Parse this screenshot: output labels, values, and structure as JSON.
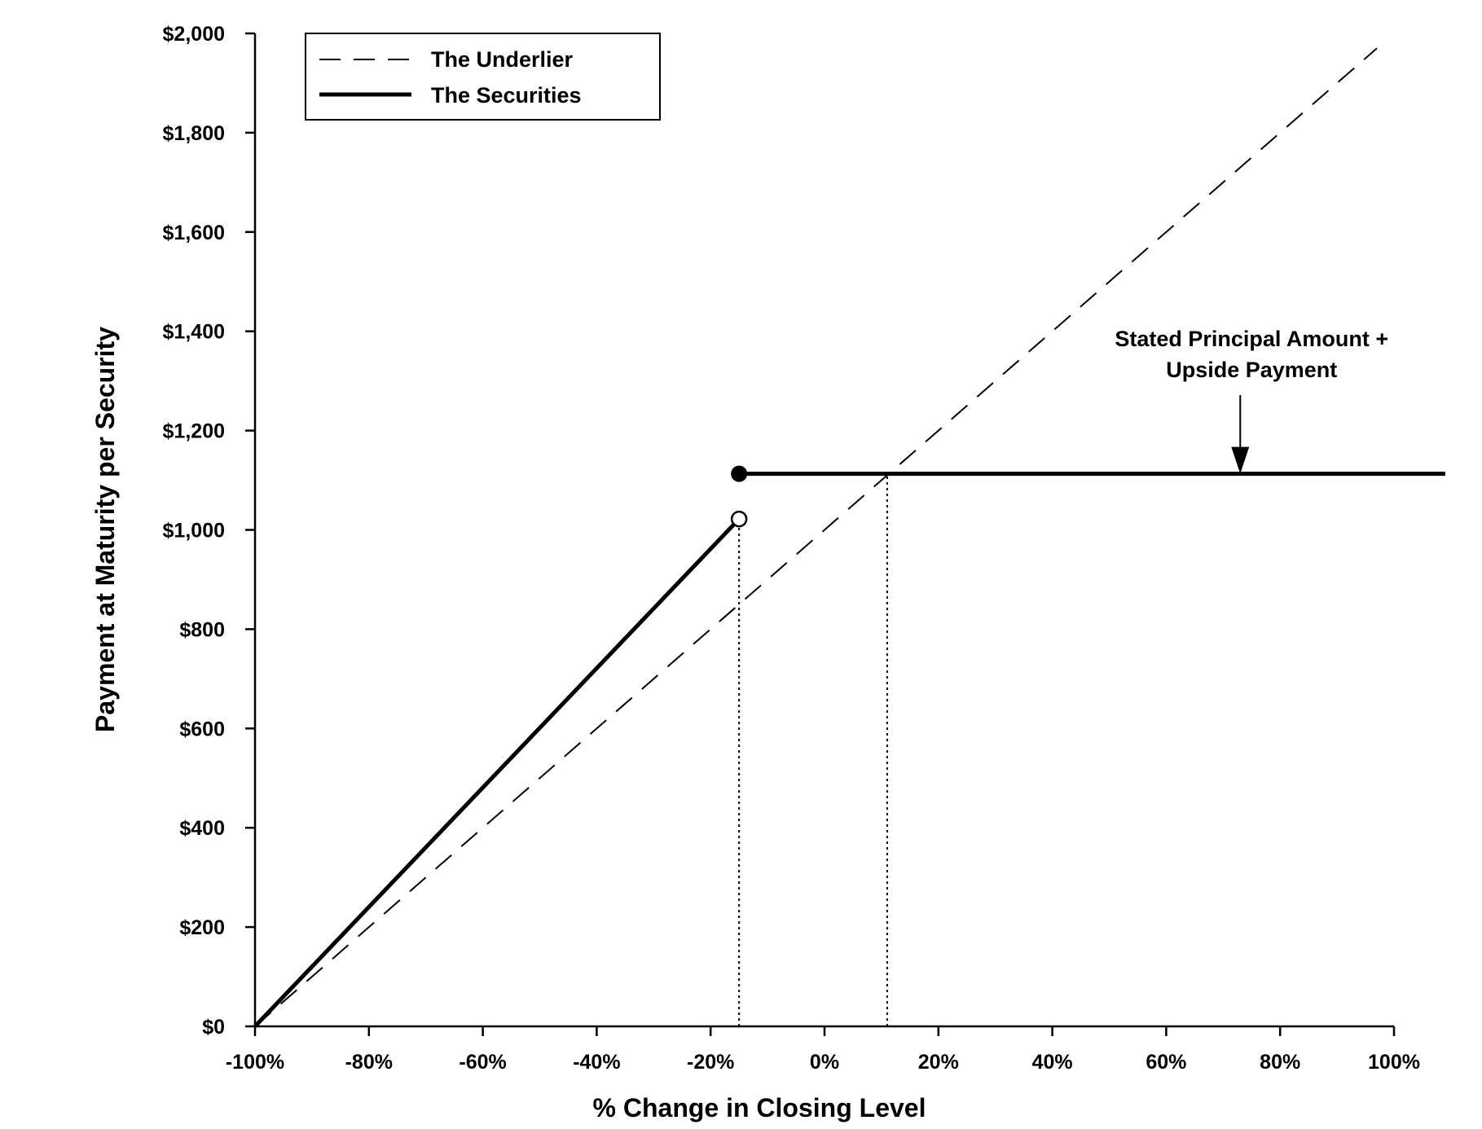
{
  "chart_data": {
    "type": "line",
    "xlabel": "% Change in Closing Level",
    "ylabel": "Payment at Maturity per Security",
    "xlim": [
      -100,
      100
    ],
    "ylim": [
      0,
      2000
    ],
    "x_ticks": [
      -100,
      -80,
      -60,
      -40,
      -20,
      0,
      20,
      40,
      60,
      80,
      100
    ],
    "x_tick_labels": [
      "-100%",
      "-80%",
      "-60%",
      "-40%",
      "-20%",
      "0%",
      "20%",
      "40%",
      "60%",
      "80%",
      "100%"
    ],
    "y_ticks": [
      0,
      200,
      400,
      600,
      800,
      1000,
      1200,
      1400,
      1600,
      1800,
      2000
    ],
    "y_tick_labels": [
      "$0",
      "$200",
      "$400",
      "$600",
      "$800",
      "$1,000",
      "$1,200",
      "$1,400",
      "$1,600",
      "$1,800",
      "$2,000"
    ],
    "grid": false,
    "legend_position": "top-left",
    "series": [
      {
        "name": "The Underlier",
        "style": "dashed",
        "color": "#000000",
        "x": [
          -100,
          97
        ],
        "y": [
          0,
          1970
        ]
      },
      {
        "name": "The Securities",
        "style": "solid",
        "color": "#000000",
        "segments": [
          {
            "x": [
              -100,
              -15
            ],
            "y": [
              0,
              1022
            ],
            "end_marker": "open-circle"
          },
          {
            "x": [
              -15,
              109
            ],
            "y": [
              1113,
              1113
            ],
            "start_marker": "filled-circle"
          }
        ]
      }
    ],
    "reference_lines": [
      {
        "x": -15,
        "y_from": 0,
        "y_to": 1022,
        "style": "dotted"
      },
      {
        "x": 11,
        "y_from": 0,
        "y_to": 1113,
        "style": "dotted"
      }
    ],
    "annotations": [
      {
        "lines": [
          "Stated Principal Amount +",
          "Upside Payment"
        ],
        "arrow_to": {
          "x": 73,
          "y": 1113
        },
        "text_at": {
          "x": 75,
          "y": 1370
        }
      }
    ]
  }
}
